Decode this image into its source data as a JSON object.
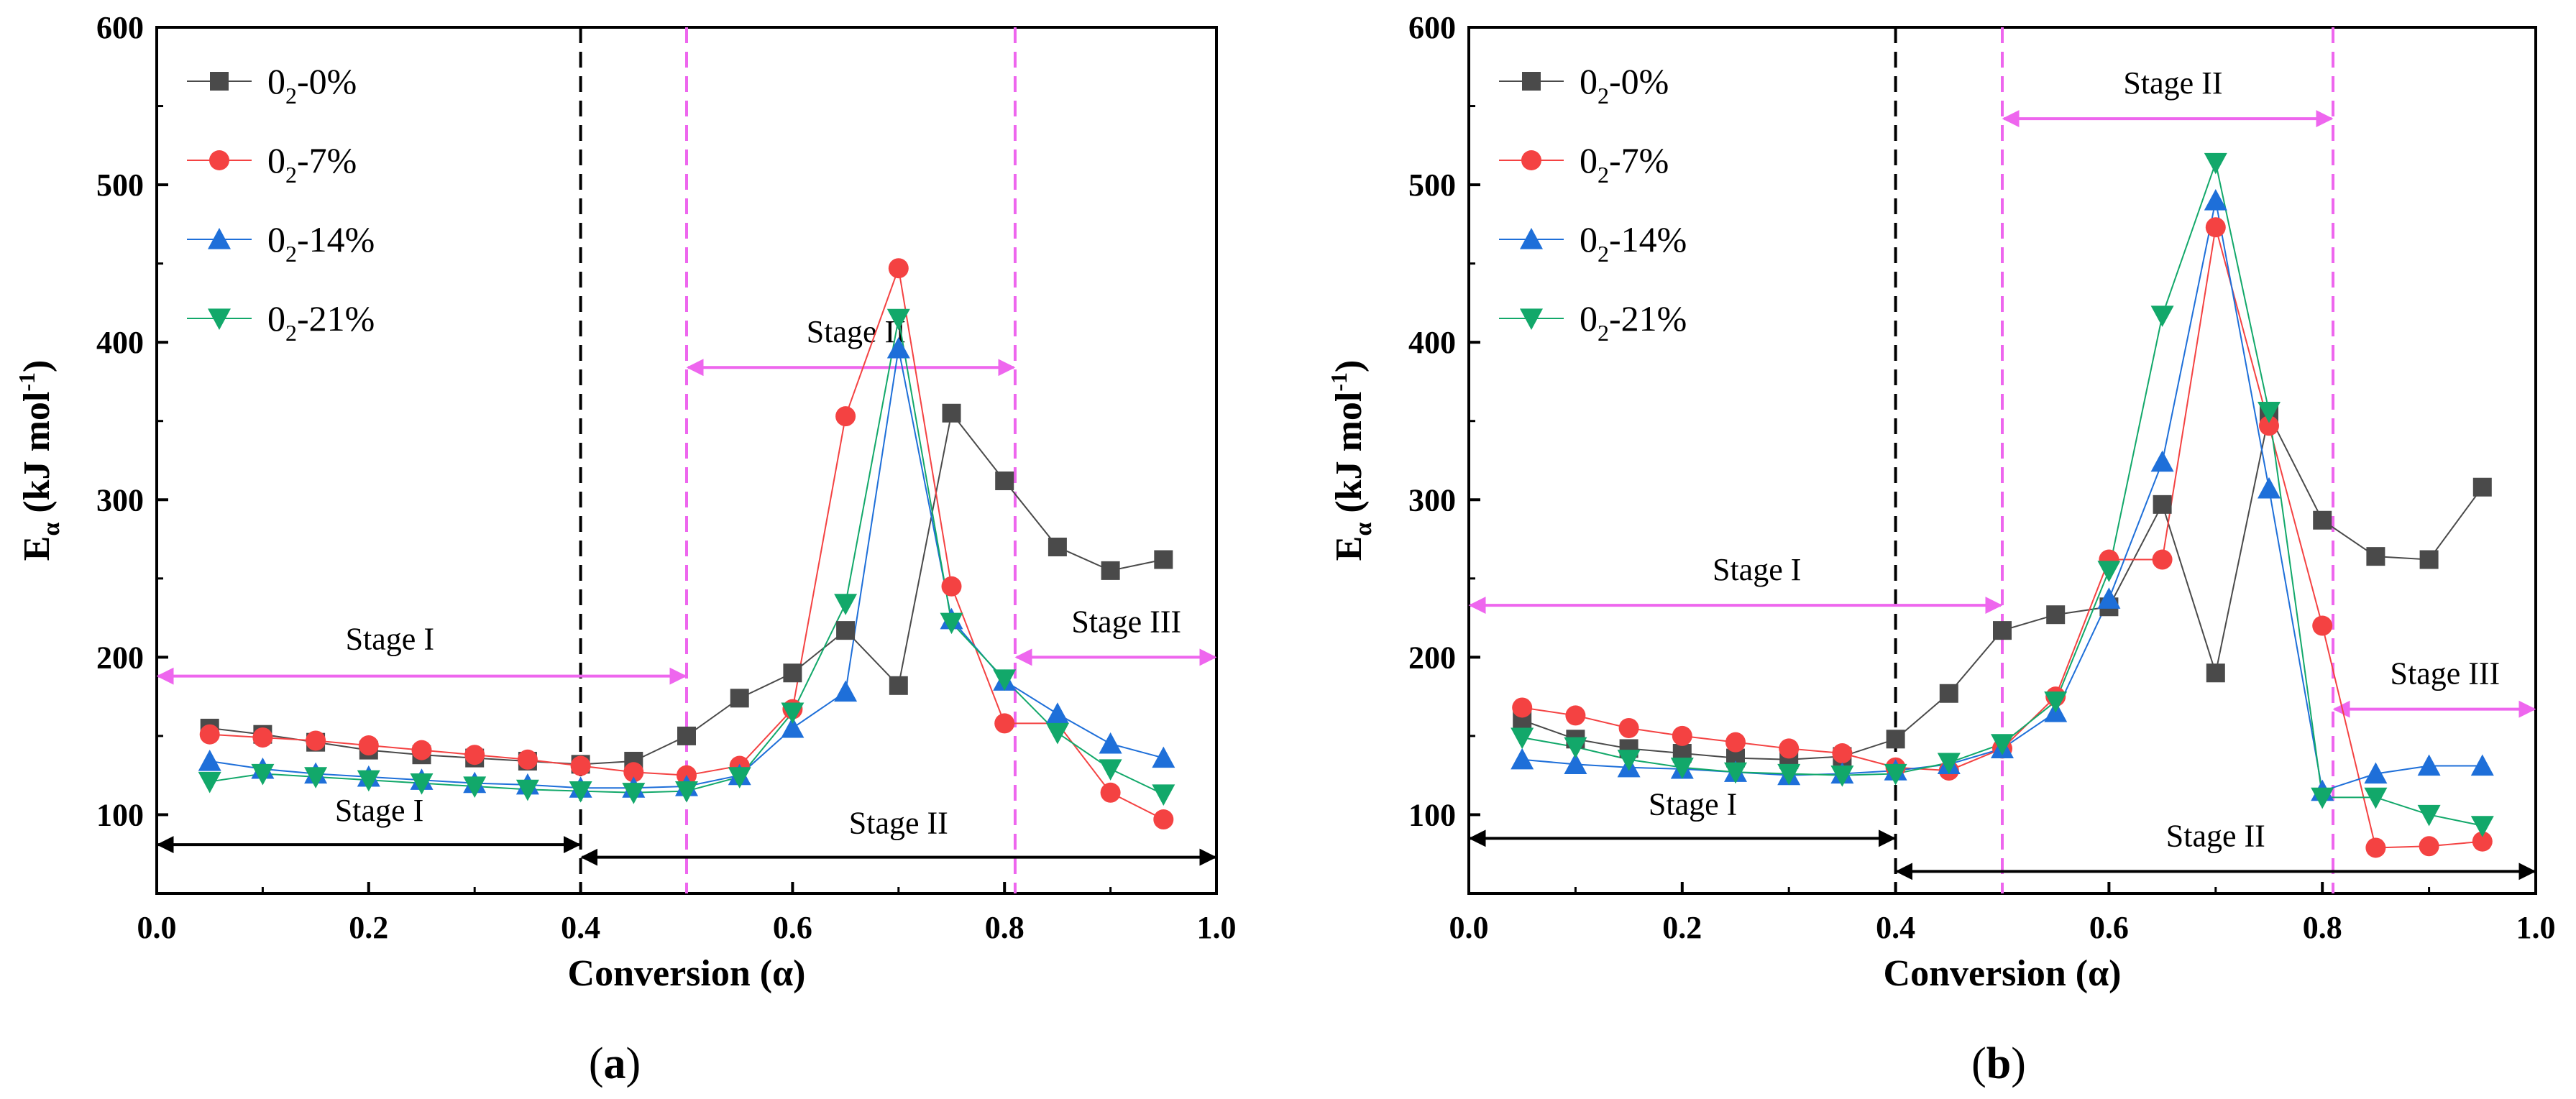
{
  "chart_data": [
    {
      "type": "scatter",
      "panel_label": "a",
      "xlabel": "Conversion (α)",
      "ylabel_main": "E",
      "ylabel_sub": "α",
      "ylabel_mid": " (kJ mol",
      "ylabel_sup": "-1",
      "ylabel_end": ")",
      "xlim": [
        0.0,
        1.0
      ],
      "ylim": [
        50,
        600
      ],
      "xticks": [
        "0.0",
        "0.2",
        "0.4",
        "0.6",
        "0.8",
        "1.0"
      ],
      "yticks": [
        "100",
        "200",
        "300",
        "400",
        "500",
        "600"
      ],
      "legend_position": "top-left",
      "x": [
        0.05,
        0.1,
        0.15,
        0.2,
        0.25,
        0.3,
        0.35,
        0.4,
        0.45,
        0.5,
        0.55,
        0.6,
        0.65,
        0.7,
        0.75,
        0.8,
        0.85,
        0.9,
        0.95
      ],
      "series": [
        {
          "name_main": "0",
          "name_sub": "2",
          "name_rest": "-0%",
          "marker": "square",
          "color": "#4a4a4a",
          "values": [
            155,
            151,
            146,
            141,
            138,
            136,
            134,
            132,
            134,
            150,
            174,
            190,
            217,
            182,
            355,
            312,
            270,
            255,
            262
          ]
        },
        {
          "name_main": "0",
          "name_sub": "2",
          "name_rest": "-7%",
          "marker": "circle",
          "color": "#f44242",
          "values": [
            151,
            149,
            147,
            144,
            141,
            138,
            135,
            131,
            127,
            125,
            131,
            167,
            353,
            447,
            245,
            158,
            158,
            114,
            97
          ]
        },
        {
          "name_main": "0",
          "name_sub": "2",
          "name_rest": "-14%",
          "marker": "triangle-up",
          "color": "#1e6fd9",
          "values": [
            134,
            129,
            126,
            124,
            122,
            120,
            119,
            117,
            117,
            118,
            125,
            155,
            178,
            396,
            224,
            185,
            164,
            145,
            136
          ]
        },
        {
          "name_main": "0",
          "name_sub": "2",
          "name_rest": "-21%",
          "marker": "triangle-down",
          "color": "#12a86a",
          "values": [
            121,
            126,
            124,
            122,
            120,
            118,
            116,
            115,
            114,
            115,
            124,
            165,
            234,
            415,
            222,
            186,
            152,
            129,
            113
          ]
        }
      ],
      "vlines": [
        {
          "x": 0.4,
          "color": "#000000"
        },
        {
          "x": 0.5,
          "color": "#ee66ee"
        },
        {
          "x": 0.81,
          "color": "#ee66ee"
        }
      ],
      "annotations": [
        {
          "text": "Stage I",
          "x1": 0.0,
          "x2": 0.5,
          "y": 188,
          "label_x": 0.22,
          "label_y": 205,
          "color": "#ee66ee"
        },
        {
          "text": "Stage II",
          "x1": 0.5,
          "x2": 0.81,
          "y": 384,
          "label_x": 0.66,
          "label_y": 400,
          "color": "#ee66ee"
        },
        {
          "text": "Stage III",
          "x1": 0.81,
          "x2": 1.0,
          "y": 200,
          "label_x": 0.915,
          "label_y": 216,
          "color": "#ee66ee"
        },
        {
          "text": "Stage I",
          "x1": 0.0,
          "x2": 0.4,
          "y": 81,
          "label_x": 0.21,
          "label_y": 96,
          "color": "#000000"
        },
        {
          "text": "Stage II",
          "x1": 0.4,
          "x2": 1.0,
          "y": 73,
          "label_x": 0.7,
          "label_y": 88,
          "color": "#000000"
        }
      ]
    },
    {
      "type": "scatter",
      "panel_label": "b",
      "xlabel": "Conversion (α)",
      "ylabel_main": "E",
      "ylabel_sub": "α",
      "ylabel_mid": " (kJ mol",
      "ylabel_sup": "-1",
      "ylabel_end": ")",
      "xlim": [
        0.0,
        1.0
      ],
      "ylim": [
        50,
        600
      ],
      "xticks": [
        "0.0",
        "0.2",
        "0.4",
        "0.6",
        "0.8",
        "1.0"
      ],
      "yticks": [
        "100",
        "200",
        "300",
        "400",
        "500",
        "600"
      ],
      "legend_position": "top-left",
      "x": [
        0.05,
        0.1,
        0.15,
        0.2,
        0.25,
        0.3,
        0.35,
        0.4,
        0.45,
        0.5,
        0.55,
        0.6,
        0.65,
        0.7,
        0.75,
        0.8,
        0.85,
        0.9,
        0.95
      ],
      "series": [
        {
          "name_main": "0",
          "name_sub": "2",
          "name_rest": "-0%",
          "marker": "square",
          "color": "#4a4a4a",
          "values": [
            160,
            148,
            142,
            139,
            136,
            135,
            137,
            148,
            177,
            217,
            227,
            232,
            297,
            190,
            354,
            287,
            264,
            262,
            308
          ]
        },
        {
          "name_main": "0",
          "name_sub": "2",
          "name_rest": "-7%",
          "marker": "circle",
          "color": "#f44242",
          "values": [
            168,
            163,
            155,
            150,
            146,
            142,
            139,
            130,
            128,
            142,
            175,
            262,
            262,
            473,
            347,
            220,
            79,
            80,
            83
          ]
        },
        {
          "name_main": "0",
          "name_sub": "2",
          "name_rest": "-14%",
          "marker": "triangle-up",
          "color": "#1e6fd9",
          "values": [
            135,
            132,
            130,
            129,
            127,
            125,
            126,
            128,
            132,
            142,
            165,
            237,
            324,
            490,
            307,
            115,
            126,
            131,
            131
          ]
        },
        {
          "name_main": "0",
          "name_sub": "2",
          "name_rest": "-21%",
          "marker": "triangle-down",
          "color": "#12a86a",
          "values": [
            149,
            143,
            135,
            130,
            127,
            126,
            125,
            126,
            133,
            145,
            172,
            255,
            417,
            514,
            356,
            111,
            111,
            100,
            93
          ]
        }
      ],
      "vlines": [
        {
          "x": 0.4,
          "color": "#000000"
        },
        {
          "x": 0.5,
          "color": "#ee66ee"
        },
        {
          "x": 0.81,
          "color": "#ee66ee"
        }
      ],
      "annotations": [
        {
          "text": "Stage II",
          "x1": 0.5,
          "x2": 0.81,
          "y": 542,
          "label_x": 0.66,
          "label_y": 558,
          "color": "#ee66ee"
        },
        {
          "text": "Stage I",
          "x1": 0.0,
          "x2": 0.5,
          "y": 233,
          "label_x": 0.27,
          "label_y": 249,
          "color": "#ee66ee"
        },
        {
          "text": "Stage III",
          "x1": 0.81,
          "x2": 1.0,
          "y": 167,
          "label_x": 0.915,
          "label_y": 183,
          "color": "#ee66ee"
        },
        {
          "text": "Stage I",
          "x1": 0.0,
          "x2": 0.4,
          "y": 85,
          "label_x": 0.21,
          "label_y": 100,
          "color": "#000000"
        },
        {
          "text": "Stage II",
          "x1": 0.4,
          "x2": 1.0,
          "y": 64,
          "label_x": 0.7,
          "label_y": 80,
          "color": "#000000"
        }
      ]
    }
  ]
}
